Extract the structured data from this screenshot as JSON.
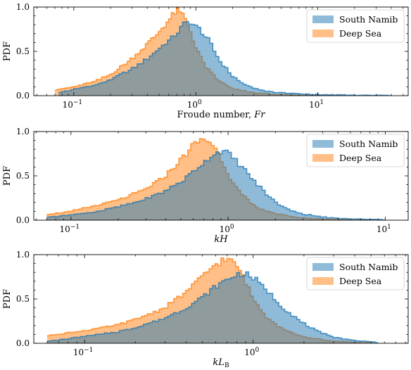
{
  "chart_data": [
    {
      "type": "histogram",
      "ylabel": "PDF",
      "xlabel_text": "Froude number, ",
      "xlabel_math": "Fr",
      "xlabel_sub": "",
      "xscale": "log",
      "xlim": [
        0.047,
        55
      ],
      "ylim": [
        0,
        1.0
      ],
      "yticks": [
        "0.0",
        "0.5",
        "1.0"
      ],
      "xticks": [
        {
          "value": 0.1,
          "base": "10",
          "exp": "−1"
        },
        {
          "value": 1,
          "base": "10",
          "exp": "0"
        },
        {
          "value": 10,
          "base": "10",
          "exp": "1"
        }
      ],
      "legend": {
        "placement": "top-right",
        "entries": [
          "South Namib",
          "Deep Sea"
        ]
      },
      "series": [
        {
          "name": "South Namib",
          "color": "#1f77b4",
          "x": [
            0.075,
            0.1,
            0.15,
            0.2,
            0.3,
            0.4,
            0.5,
            0.6,
            0.7,
            0.8,
            0.9,
            1.0,
            1.1,
            1.3,
            1.6,
            2.0,
            2.5,
            3.0,
            4.0,
            6.0,
            10,
            20,
            40
          ],
          "y": [
            0.03,
            0.07,
            0.12,
            0.18,
            0.3,
            0.42,
            0.53,
            0.62,
            0.7,
            0.8,
            0.84,
            0.78,
            0.74,
            0.6,
            0.38,
            0.22,
            0.13,
            0.08,
            0.045,
            0.025,
            0.012,
            0.004,
            0.002
          ]
        },
        {
          "name": "Deep Sea",
          "color": "#ff7f0e",
          "x": [
            0.07,
            0.1,
            0.15,
            0.2,
            0.3,
            0.4,
            0.5,
            0.6,
            0.7,
            0.8,
            0.9,
            1.0,
            1.2,
            1.5,
            2.0,
            3.0,
            5.0,
            8.0,
            15
          ],
          "y": [
            0.06,
            0.1,
            0.16,
            0.24,
            0.42,
            0.58,
            0.72,
            0.85,
            0.96,
            0.9,
            0.74,
            0.55,
            0.33,
            0.18,
            0.08,
            0.03,
            0.012,
            0.004,
            0.002
          ]
        }
      ]
    },
    {
      "type": "histogram",
      "ylabel": "PDF",
      "xlabel_text": "",
      "xlabel_math": "kH",
      "xlabel_sub": "",
      "xscale": "log",
      "xlim": [
        0.058,
        14
      ],
      "ylim": [
        0,
        1.0
      ],
      "yticks": [
        "0.0",
        "0.5",
        "1.0"
      ],
      "xticks": [
        {
          "value": 0.1,
          "base": "10",
          "exp": "−1"
        },
        {
          "value": 1,
          "base": "10",
          "exp": "0"
        },
        {
          "value": 10,
          "base": "10",
          "exp": "1"
        }
      ],
      "legend": {
        "placement": "top-right",
        "entries": [
          "South Namib",
          "Deep Sea"
        ]
      },
      "series": [
        {
          "name": "South Namib",
          "color": "#1f77b4",
          "x": [
            0.07,
            0.1,
            0.15,
            0.2,
            0.3,
            0.4,
            0.5,
            0.6,
            0.7,
            0.8,
            0.9,
            1.0,
            1.2,
            1.5,
            2.0,
            2.5,
            3.0,
            4.0,
            5.0,
            7.0,
            10
          ],
          "y": [
            0.03,
            0.06,
            0.1,
            0.15,
            0.24,
            0.33,
            0.43,
            0.55,
            0.65,
            0.74,
            0.78,
            0.76,
            0.62,
            0.42,
            0.2,
            0.11,
            0.07,
            0.035,
            0.02,
            0.01,
            0.005
          ]
        },
        {
          "name": "Deep Sea",
          "color": "#ff7f0e",
          "x": [
            0.07,
            0.1,
            0.15,
            0.2,
            0.3,
            0.4,
            0.5,
            0.6,
            0.7,
            0.8,
            0.9,
            1.0,
            1.2,
            1.5,
            2.0,
            3.0,
            5.0,
            8.0
          ],
          "y": [
            0.06,
            0.1,
            0.17,
            0.23,
            0.35,
            0.5,
            0.68,
            0.85,
            0.92,
            0.86,
            0.7,
            0.52,
            0.3,
            0.15,
            0.07,
            0.025,
            0.008,
            0.003
          ]
        }
      ]
    },
    {
      "type": "histogram",
      "ylabel": "PDF",
      "xlabel_text": "",
      "xlabel_math": "kL",
      "xlabel_sub": "B",
      "xscale": "log",
      "xlim": [
        0.05,
        8.3
      ],
      "ylim": [
        0,
        1.0
      ],
      "yticks": [
        "0.0",
        "0.5",
        "1.0"
      ],
      "xticks": [
        {
          "value": 0.1,
          "base": "10",
          "exp": "−1"
        },
        {
          "value": 1,
          "base": "10",
          "exp": "0"
        }
      ],
      "legend": {
        "placement": "top-right",
        "entries": [
          "South Namib",
          "Deep Sea"
        ]
      },
      "series": [
        {
          "name": "South Namib",
          "color": "#1f77b4",
          "x": [
            0.06,
            0.08,
            0.1,
            0.15,
            0.2,
            0.3,
            0.4,
            0.5,
            0.6,
            0.7,
            0.8,
            0.9,
            1.0,
            1.2,
            1.5,
            2.0,
            2.5,
            3.0,
            4.0,
            5.5
          ],
          "y": [
            0.02,
            0.05,
            0.08,
            0.12,
            0.18,
            0.28,
            0.4,
            0.52,
            0.64,
            0.72,
            0.78,
            0.78,
            0.74,
            0.6,
            0.4,
            0.22,
            0.12,
            0.07,
            0.03,
            0.01
          ]
        },
        {
          "name": "Deep Sea",
          "color": "#ff7f0e",
          "x": [
            0.06,
            0.08,
            0.1,
            0.15,
            0.2,
            0.3,
            0.4,
            0.5,
            0.6,
            0.7,
            0.8,
            0.9,
            1.0,
            1.2,
            1.5,
            2.0,
            3.0,
            5.0
          ],
          "y": [
            0.08,
            0.12,
            0.14,
            0.2,
            0.27,
            0.4,
            0.58,
            0.75,
            0.9,
            0.95,
            0.88,
            0.7,
            0.5,
            0.3,
            0.16,
            0.07,
            0.025,
            0.005
          ]
        }
      ]
    }
  ]
}
